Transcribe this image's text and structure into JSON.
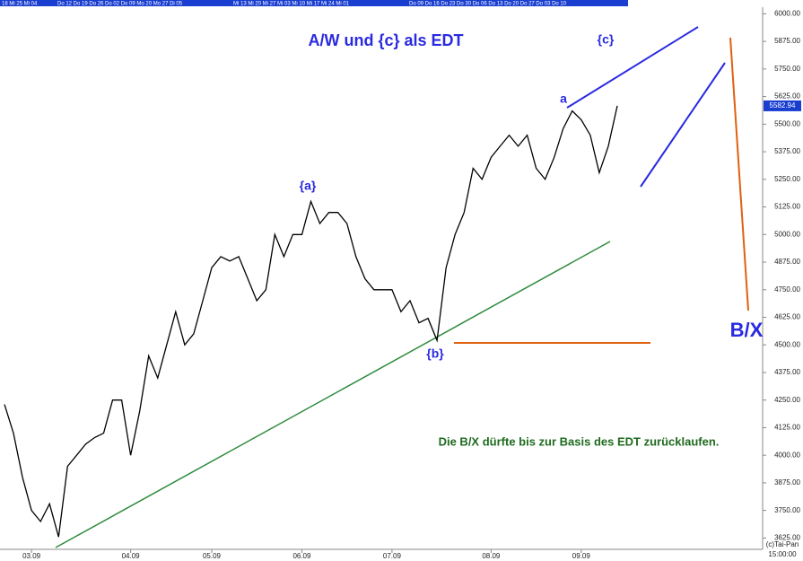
{
  "chart_data": {
    "type": "line",
    "title": "A/W und {c} als EDT",
    "annotations": {
      "c": "{c}",
      "a": "a",
      "wave_a": "{a}",
      "wave_b": "{b}",
      "bx": "B/X",
      "note": "Die B/X dürfte bis zur Basis des EDT zurücklaufen.",
      "copyright": "(c)Tai-Pan",
      "time": "15:00:00"
    },
    "date_strip": [
      "18 Mi 25 Mi 04",
      "Do 12 Do 19 Do 26 Do 02 Do 09 Mo 20 Mo 27 Di 05",
      "Mi 13 Mi 20 Mi 27 Mi 03 Mi 10 Mi 17 Mi 24 Mi 01",
      "Do 09 Do 16 Do 23 Do 30 Do 06 Do 13 Do 20 Do 27 Do 03 Do 10"
    ],
    "categories": [
      null,
      null,
      null,
      "03.09",
      null,
      null,
      null,
      null,
      null,
      null,
      null,
      null,
      null,
      null,
      "04.09",
      null,
      null,
      null,
      null,
      null,
      null,
      null,
      null,
      "05.09",
      null,
      null,
      null,
      null,
      null,
      null,
      null,
      null,
      null,
      "06.09",
      null,
      null,
      null,
      null,
      null,
      null,
      null,
      null,
      null,
      "07.09",
      null,
      null,
      null,
      null,
      null,
      null,
      null,
      null,
      null,
      null,
      "08.09",
      null,
      null,
      null,
      null,
      null,
      null,
      null,
      null,
      null,
      "09.09",
      null,
      null,
      null,
      null
    ],
    "values": [
      4230,
      4100,
      3900,
      3750,
      3700,
      3780,
      3630,
      3950,
      4000,
      4050,
      4080,
      4100,
      4250,
      4250,
      4000,
      4200,
      4450,
      4350,
      4500,
      4650,
      4500,
      4550,
      4700,
      4850,
      4900,
      4880,
      4900,
      4800,
      4700,
      4750,
      5000,
      4900,
      5000,
      5000,
      5150,
      5050,
      5100,
      5100,
      5050,
      4900,
      4800,
      4750,
      4750,
      4750,
      4650,
      4700,
      4600,
      4620,
      4520,
      4850,
      5000,
      5100,
      5300,
      5250,
      5350,
      5400,
      5450,
      5400,
      5450,
      5300,
      5250,
      5350,
      5480,
      5560,
      5520,
      5450,
      5280,
      5400,
      5582.94
    ],
    "color": "#000000",
    "last_price": 5582.94,
    "ylim": [
      3590,
      6030
    ],
    "yticks": [
      {
        "value": 6000,
        "label": "6000.00"
      },
      {
        "value": 5875,
        "label": "5875.00"
      },
      {
        "value": 5750,
        "label": "5750.00"
      },
      {
        "value": 5625,
        "label": "5625.00"
      },
      {
        "value": 5500,
        "label": "5500.00"
      },
      {
        "value": 5375,
        "label": "5375.00"
      },
      {
        "value": 5250,
        "label": "5250.00"
      },
      {
        "value": 5125,
        "label": "5125.00"
      },
      {
        "value": 5000,
        "label": "5000.00"
      },
      {
        "value": 4875,
        "label": "4875.00"
      },
      {
        "value": 4750,
        "label": "4750.00"
      },
      {
        "value": 4625,
        "label": "4625.00"
      },
      {
        "value": 4500,
        "label": "4500.00"
      },
      {
        "value": 4375,
        "label": "4375.00"
      },
      {
        "value": 4250,
        "label": "4250.00"
      },
      {
        "value": 4125,
        "label": "4125.00"
      },
      {
        "value": 4000,
        "label": "4000.00"
      },
      {
        "value": 3875,
        "label": "3875.00"
      },
      {
        "value": 3750,
        "label": "3750.00"
      },
      {
        "value": 3625,
        "label": "3625.00"
      }
    ]
  }
}
